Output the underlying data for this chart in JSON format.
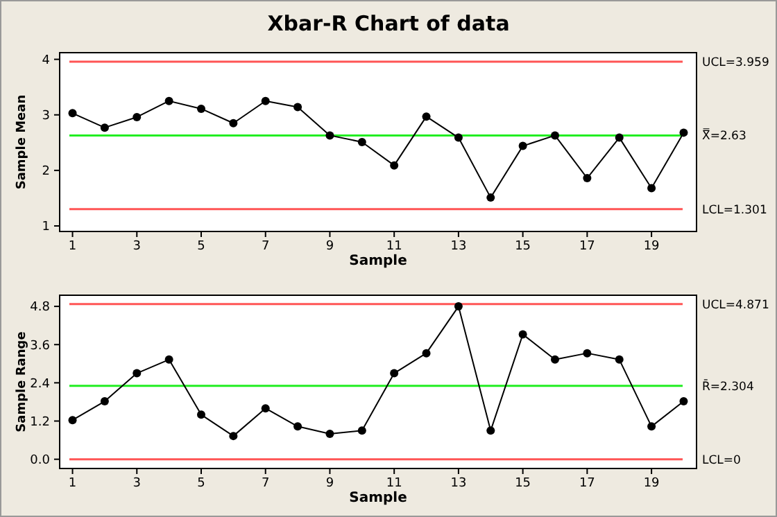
{
  "chart_data": [
    {
      "type": "line",
      "title": "Xbar-R Chart of data",
      "xlabel": "Sample",
      "ylabel": "Sample Mean",
      "x": [
        1,
        2,
        3,
        4,
        5,
        6,
        7,
        8,
        9,
        10,
        11,
        12,
        13,
        14,
        15,
        16,
        17,
        18,
        19,
        20
      ],
      "series": [
        {
          "color": "#000000",
          "values": [
            3.03,
            2.77,
            2.96,
            3.25,
            3.11,
            2.85,
            3.25,
            3.14,
            2.63,
            2.51,
            2.09,
            2.97,
            2.59,
            1.51,
            2.44,
            2.63,
            1.86,
            2.59,
            1.68,
            2.68
          ]
        }
      ],
      "xlim": [
        0.6,
        20.4
      ],
      "xticks": [
        1,
        3,
        5,
        7,
        9,
        11,
        13,
        15,
        17,
        19
      ],
      "ylim": [
        0.9,
        4.12
      ],
      "yticks": [
        1,
        2,
        3,
        4
      ],
      "marker": "circle",
      "line_style": "solid",
      "grid": false,
      "ref_lines": [
        {
          "axis": "y",
          "value": 3.959,
          "label": "UCL=3.959",
          "color": "#ff5555"
        },
        {
          "axis": "y",
          "value": 2.63,
          "label": "X̿=2.63",
          "color": "#22ee22"
        },
        {
          "axis": "y",
          "value": 1.301,
          "label": "LCL=1.301",
          "color": "#ff5555"
        }
      ]
    },
    {
      "type": "line",
      "xlabel": "Sample",
      "ylabel": "Sample Range",
      "x": [
        1,
        2,
        3,
        4,
        5,
        6,
        7,
        8,
        9,
        10,
        11,
        12,
        13,
        14,
        15,
        16,
        17,
        18,
        19,
        20
      ],
      "series": [
        {
          "color": "#000000",
          "values": [
            1.23,
            1.82,
            2.7,
            3.13,
            1.4,
            0.73,
            1.6,
            1.03,
            0.8,
            0.9,
            2.7,
            3.33,
            4.8,
            0.9,
            3.92,
            3.13,
            3.33,
            3.13,
            1.03,
            1.82
          ]
        }
      ],
      "xlim": [
        0.6,
        20.4
      ],
      "xticks": [
        1,
        3,
        5,
        7,
        9,
        11,
        13,
        15,
        17,
        19
      ],
      "ylim": [
        -0.29,
        5.15
      ],
      "yticks": [
        {
          "value": 0,
          "label": "0.0"
        },
        1.2,
        2.4,
        3.6,
        4.8
      ],
      "marker": "circle",
      "line_style": "solid",
      "grid": false,
      "ref_lines": [
        {
          "axis": "y",
          "value": 4.871,
          "label": "UCL=4.871",
          "color": "#ff5555"
        },
        {
          "axis": "y",
          "value": 2.304,
          "label": "R̄=2.304",
          "color": "#22ee22"
        },
        {
          "axis": "y",
          "value": 0,
          "label": "LCL=0",
          "color": "#ff5555"
        }
      ]
    }
  ]
}
